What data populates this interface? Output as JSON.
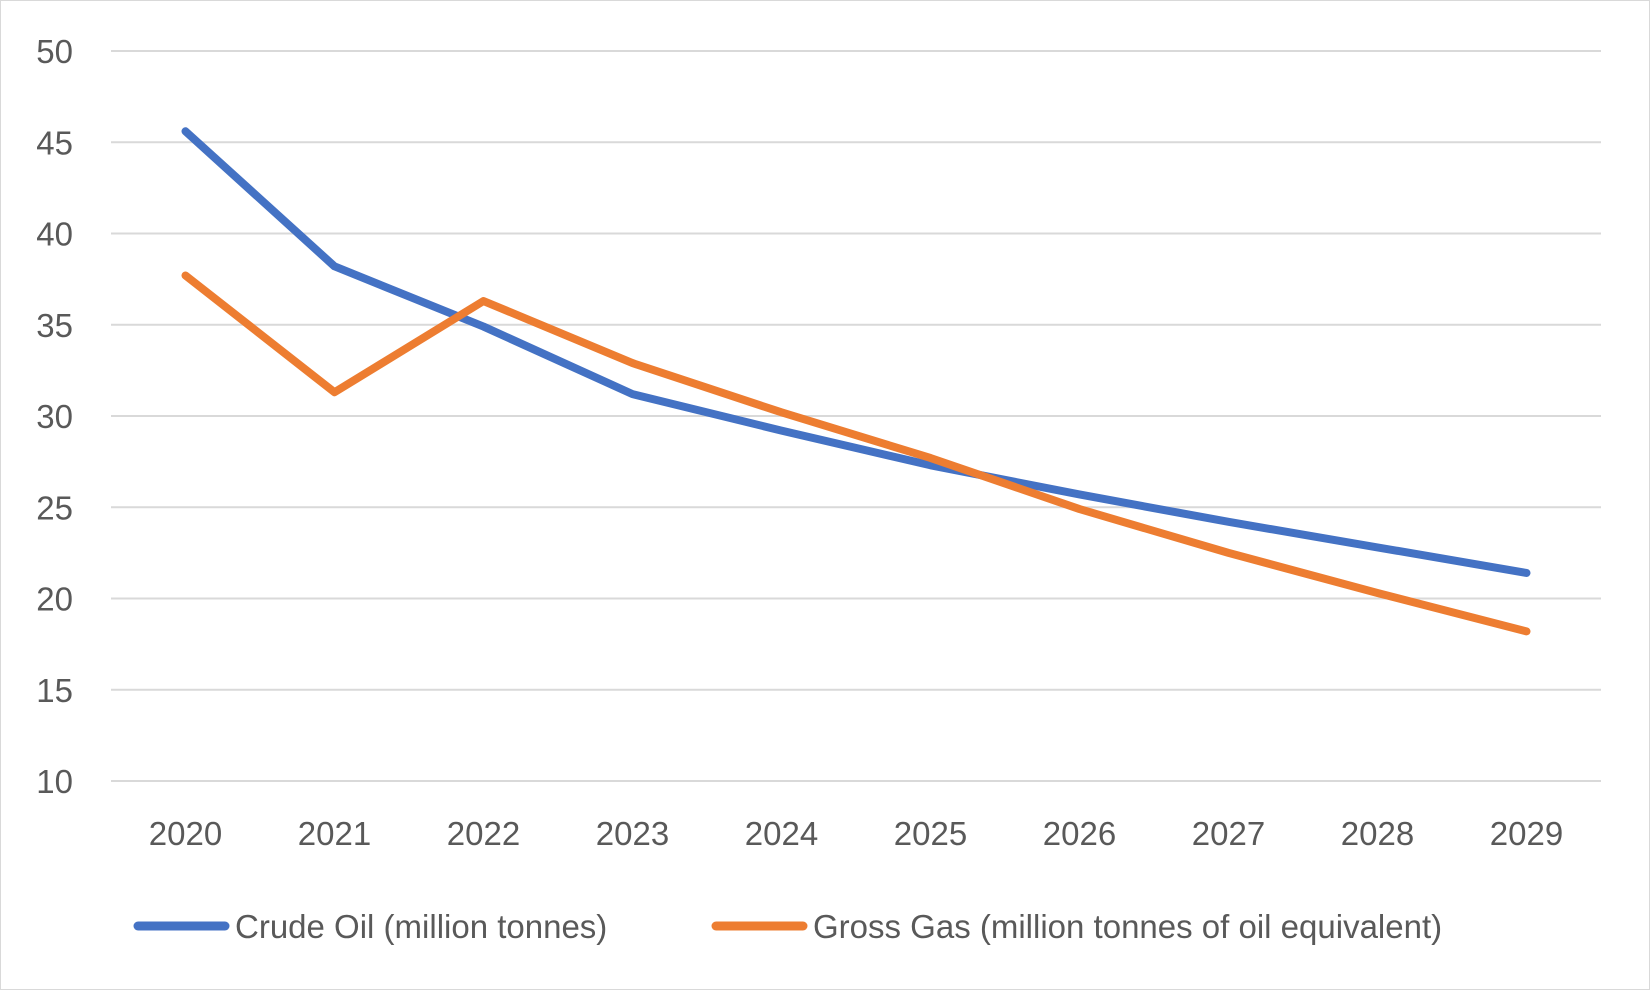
{
  "chart_data": {
    "type": "line",
    "title": "",
    "xlabel": "",
    "ylabel": "",
    "categories": [
      "2020",
      "2021",
      "2022",
      "2023",
      "2024",
      "2025",
      "2026",
      "2027",
      "2028",
      "2029"
    ],
    "ylim": [
      10,
      50
    ],
    "yticks": [
      10,
      15,
      20,
      25,
      30,
      35,
      40,
      45,
      50
    ],
    "grid": true,
    "legend_position": "bottom",
    "series": [
      {
        "name": "Crude Oil (million tonnes)",
        "color": "#4472C4",
        "values": [
          45.6,
          38.2,
          34.9,
          31.2,
          29.2,
          27.3,
          25.7,
          24.2,
          22.8,
          21.4
        ]
      },
      {
        "name": "Gross Gas (million tonnes of oil equivalent)",
        "color": "#ED7D31",
        "values": [
          37.7,
          31.3,
          36.3,
          32.9,
          30.2,
          27.7,
          24.9,
          22.5,
          20.3,
          18.2
        ]
      }
    ]
  }
}
